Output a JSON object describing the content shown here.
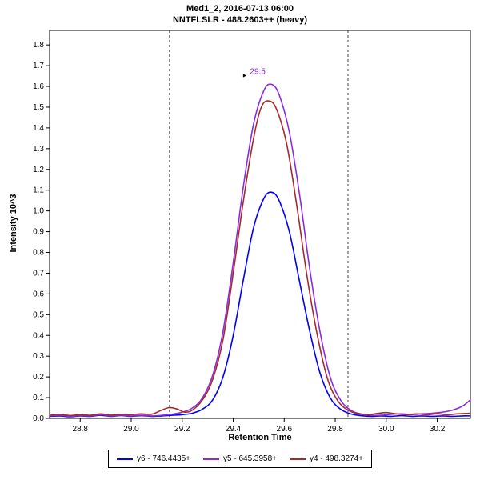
{
  "header": {
    "title_line1": "Med1_2, 2016-07-13 06:00",
    "title_line2": "NNTFLSLR - 488.2603++ (heavy)"
  },
  "chart_data": {
    "type": "line",
    "title": "Med1_2, 2016-07-13 06:00",
    "subtitle": "NNTFLSLR - 488.2603++ (heavy)",
    "xlabel": "Retention Time",
    "ylabel": "Intensity 10^3",
    "xlim": [
      28.68,
      30.33
    ],
    "ylim": [
      0,
      1.87
    ],
    "x_ticks": [
      28.8,
      29.0,
      29.2,
      29.4,
      29.6,
      29.8,
      30.0,
      30.2
    ],
    "y_tick_step": 0.1,
    "y_tick_max": 1.8,
    "grid": false,
    "legend_position": "bottom",
    "boundary_lines_x": [
      29.15,
      29.85
    ],
    "boundary_line_color": "#444444",
    "peak_annotation": {
      "x": 29.5,
      "y": 1.61,
      "label": "29.5",
      "pointer": "►",
      "color": "#8A2BE2"
    },
    "series": [
      {
        "name": "y6",
        "label": "y6 - 746.4435+",
        "color": "#0000FF",
        "points": [
          [
            28.68,
            0.01
          ],
          [
            28.72,
            0.012
          ],
          [
            28.76,
            0.008
          ],
          [
            28.8,
            0.012
          ],
          [
            28.84,
            0.01
          ],
          [
            28.88,
            0.015
          ],
          [
            28.92,
            0.01
          ],
          [
            28.96,
            0.014
          ],
          [
            29.0,
            0.01
          ],
          [
            29.04,
            0.013
          ],
          [
            29.08,
            0.01
          ],
          [
            29.12,
            0.012
          ],
          [
            29.16,
            0.015
          ],
          [
            29.2,
            0.018
          ],
          [
            29.24,
            0.025
          ],
          [
            29.28,
            0.045
          ],
          [
            29.32,
            0.09
          ],
          [
            29.36,
            0.2
          ],
          [
            29.4,
            0.4
          ],
          [
            29.44,
            0.67
          ],
          [
            29.48,
            0.92
          ],
          [
            29.52,
            1.06
          ],
          [
            29.55,
            1.09
          ],
          [
            29.58,
            1.05
          ],
          [
            29.62,
            0.9
          ],
          [
            29.66,
            0.66
          ],
          [
            29.7,
            0.42
          ],
          [
            29.74,
            0.22
          ],
          [
            29.78,
            0.1
          ],
          [
            29.82,
            0.045
          ],
          [
            29.86,
            0.022
          ],
          [
            29.9,
            0.013
          ],
          [
            29.94,
            0.01
          ],
          [
            29.98,
            0.012
          ],
          [
            30.02,
            0.01
          ],
          [
            30.06,
            0.013
          ],
          [
            30.1,
            0.01
          ],
          [
            30.14,
            0.012
          ],
          [
            30.18,
            0.01
          ],
          [
            30.22,
            0.012
          ],
          [
            30.26,
            0.01
          ],
          [
            30.3,
            0.012
          ],
          [
            30.33,
            0.012
          ]
        ]
      },
      {
        "name": "y5",
        "label": "y5 - 645.3958+",
        "color": "#8A2BE2",
        "points": [
          [
            28.68,
            0.012
          ],
          [
            28.72,
            0.015
          ],
          [
            28.76,
            0.01
          ],
          [
            28.8,
            0.014
          ],
          [
            28.84,
            0.012
          ],
          [
            28.88,
            0.018
          ],
          [
            28.92,
            0.012
          ],
          [
            28.96,
            0.016
          ],
          [
            29.0,
            0.012
          ],
          [
            29.04,
            0.015
          ],
          [
            29.08,
            0.012
          ],
          [
            29.12,
            0.015
          ],
          [
            29.16,
            0.02
          ],
          [
            29.2,
            0.03
          ],
          [
            29.24,
            0.05
          ],
          [
            29.28,
            0.1
          ],
          [
            29.32,
            0.21
          ],
          [
            29.36,
            0.42
          ],
          [
            29.4,
            0.75
          ],
          [
            29.44,
            1.12
          ],
          [
            29.48,
            1.42
          ],
          [
            29.52,
            1.58
          ],
          [
            29.55,
            1.61
          ],
          [
            29.58,
            1.56
          ],
          [
            29.62,
            1.38
          ],
          [
            29.66,
            1.08
          ],
          [
            29.7,
            0.72
          ],
          [
            29.74,
            0.42
          ],
          [
            29.78,
            0.2
          ],
          [
            29.82,
            0.09
          ],
          [
            29.86,
            0.04
          ],
          [
            29.9,
            0.022
          ],
          [
            29.94,
            0.016
          ],
          [
            29.98,
            0.015
          ],
          [
            30.02,
            0.02
          ],
          [
            30.06,
            0.022
          ],
          [
            30.1,
            0.018
          ],
          [
            30.14,
            0.022
          ],
          [
            30.18,
            0.025
          ],
          [
            30.22,
            0.03
          ],
          [
            30.26,
            0.04
          ],
          [
            30.3,
            0.06
          ],
          [
            30.33,
            0.09
          ]
        ]
      },
      {
        "name": "y4",
        "label": "y4 - 498.3274+",
        "color": "#A52A2A",
        "points": [
          [
            28.68,
            0.015
          ],
          [
            28.72,
            0.02
          ],
          [
            28.76,
            0.014
          ],
          [
            28.8,
            0.018
          ],
          [
            28.84,
            0.015
          ],
          [
            28.88,
            0.022
          ],
          [
            28.92,
            0.016
          ],
          [
            28.96,
            0.02
          ],
          [
            29.0,
            0.018
          ],
          [
            29.04,
            0.022
          ],
          [
            29.08,
            0.02
          ],
          [
            29.12,
            0.04
          ],
          [
            29.15,
            0.052
          ],
          [
            29.18,
            0.045
          ],
          [
            29.21,
            0.03
          ],
          [
            29.24,
            0.04
          ],
          [
            29.28,
            0.09
          ],
          [
            29.32,
            0.19
          ],
          [
            29.36,
            0.38
          ],
          [
            29.4,
            0.7
          ],
          [
            29.44,
            1.05
          ],
          [
            29.48,
            1.35
          ],
          [
            29.51,
            1.5
          ],
          [
            29.54,
            1.53
          ],
          [
            29.57,
            1.49
          ],
          [
            29.61,
            1.32
          ],
          [
            29.65,
            1.02
          ],
          [
            29.69,
            0.68
          ],
          [
            29.73,
            0.4
          ],
          [
            29.77,
            0.19
          ],
          [
            29.81,
            0.085
          ],
          [
            29.85,
            0.04
          ],
          [
            29.89,
            0.022
          ],
          [
            29.93,
            0.018
          ],
          [
            29.97,
            0.025
          ],
          [
            30.0,
            0.028
          ],
          [
            30.04,
            0.022
          ],
          [
            30.08,
            0.018
          ],
          [
            30.12,
            0.022
          ],
          [
            30.16,
            0.018
          ],
          [
            30.2,
            0.022
          ],
          [
            30.24,
            0.018
          ],
          [
            30.28,
            0.022
          ],
          [
            30.33,
            0.025
          ]
        ]
      }
    ]
  }
}
